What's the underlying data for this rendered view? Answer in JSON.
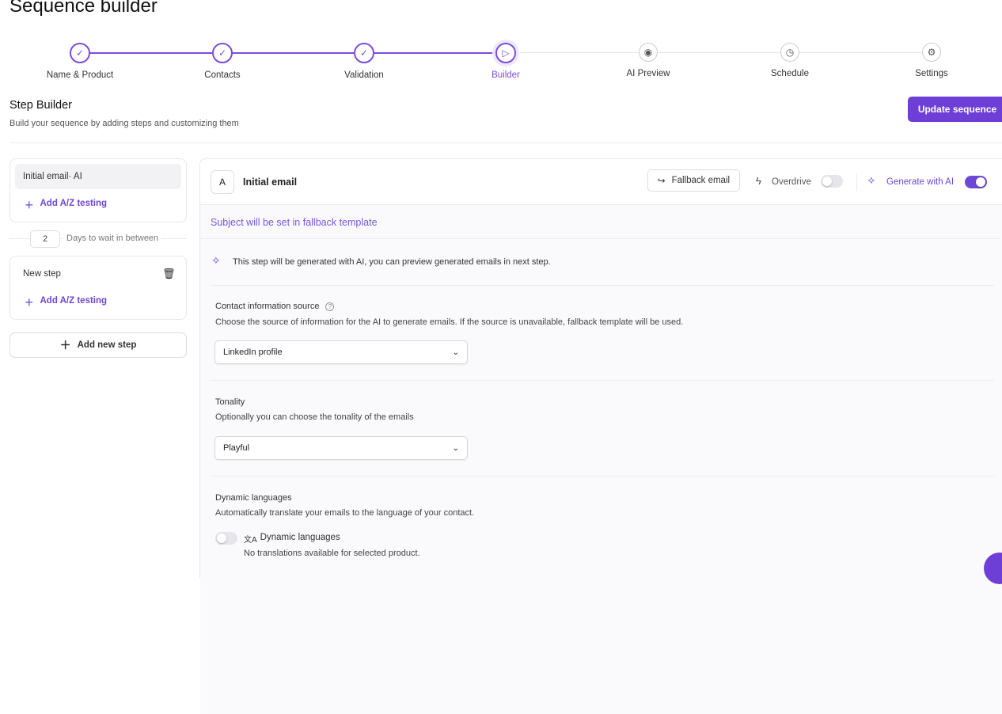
{
  "page": {
    "title": "Sequence builder"
  },
  "stepper": [
    {
      "label": "Name & Product",
      "status": "done",
      "icon": "check-icon"
    },
    {
      "label": "Contacts",
      "status": "done",
      "icon": "check-icon"
    },
    {
      "label": "Validation",
      "status": "done",
      "icon": "check-icon"
    },
    {
      "label": "Builder",
      "status": "current",
      "icon": "send-icon"
    },
    {
      "label": "AI Preview",
      "status": "todo",
      "icon": "eye-icon"
    },
    {
      "label": "Schedule",
      "status": "todo",
      "icon": "clock-icon"
    },
    {
      "label": "Settings",
      "status": "todo",
      "icon": "gear-icon"
    }
  ],
  "builder": {
    "title": "Step Builder",
    "subtitle": "Build your sequence by adding steps and customizing them",
    "update_button": "Update sequence"
  },
  "sidebar": {
    "step1": {
      "label": "Initial email· AI",
      "ab": "Add A/Z testing"
    },
    "wait": {
      "days": "2",
      "label": "Days to wait in between"
    },
    "step2": {
      "label": "New step",
      "ab": "Add A/Z testing"
    },
    "add_step": "Add new step"
  },
  "editor": {
    "badge": "A",
    "title": "Initial email",
    "fallback_button": "Fallback email",
    "overdrive": "Overdrive",
    "overdrive_on": false,
    "generate_ai": "Generate with AI",
    "generate_ai_on": true,
    "subject": "Subject will be set in fallback template",
    "ai_note": "This step will be generated with AI, you can preview generated emails in next step.",
    "contact_source": {
      "title": "Contact information source",
      "desc": "Choose the source of information for the AI to generate emails. If the source is unavailable, fallback template will be used.",
      "value": "LinkedIn profile"
    },
    "tonality": {
      "title": "Tonality",
      "desc": "Optionally you can choose the tonality of the emails",
      "value": "Playful"
    },
    "languages": {
      "title": "Dynamic languages",
      "desc": "Automatically translate your emails to the language of your contact.",
      "toggle_label": "Dynamic languages",
      "toggle_on": false,
      "note": "No translations available for selected product."
    }
  },
  "colors": {
    "accent": "#6e47d6"
  }
}
